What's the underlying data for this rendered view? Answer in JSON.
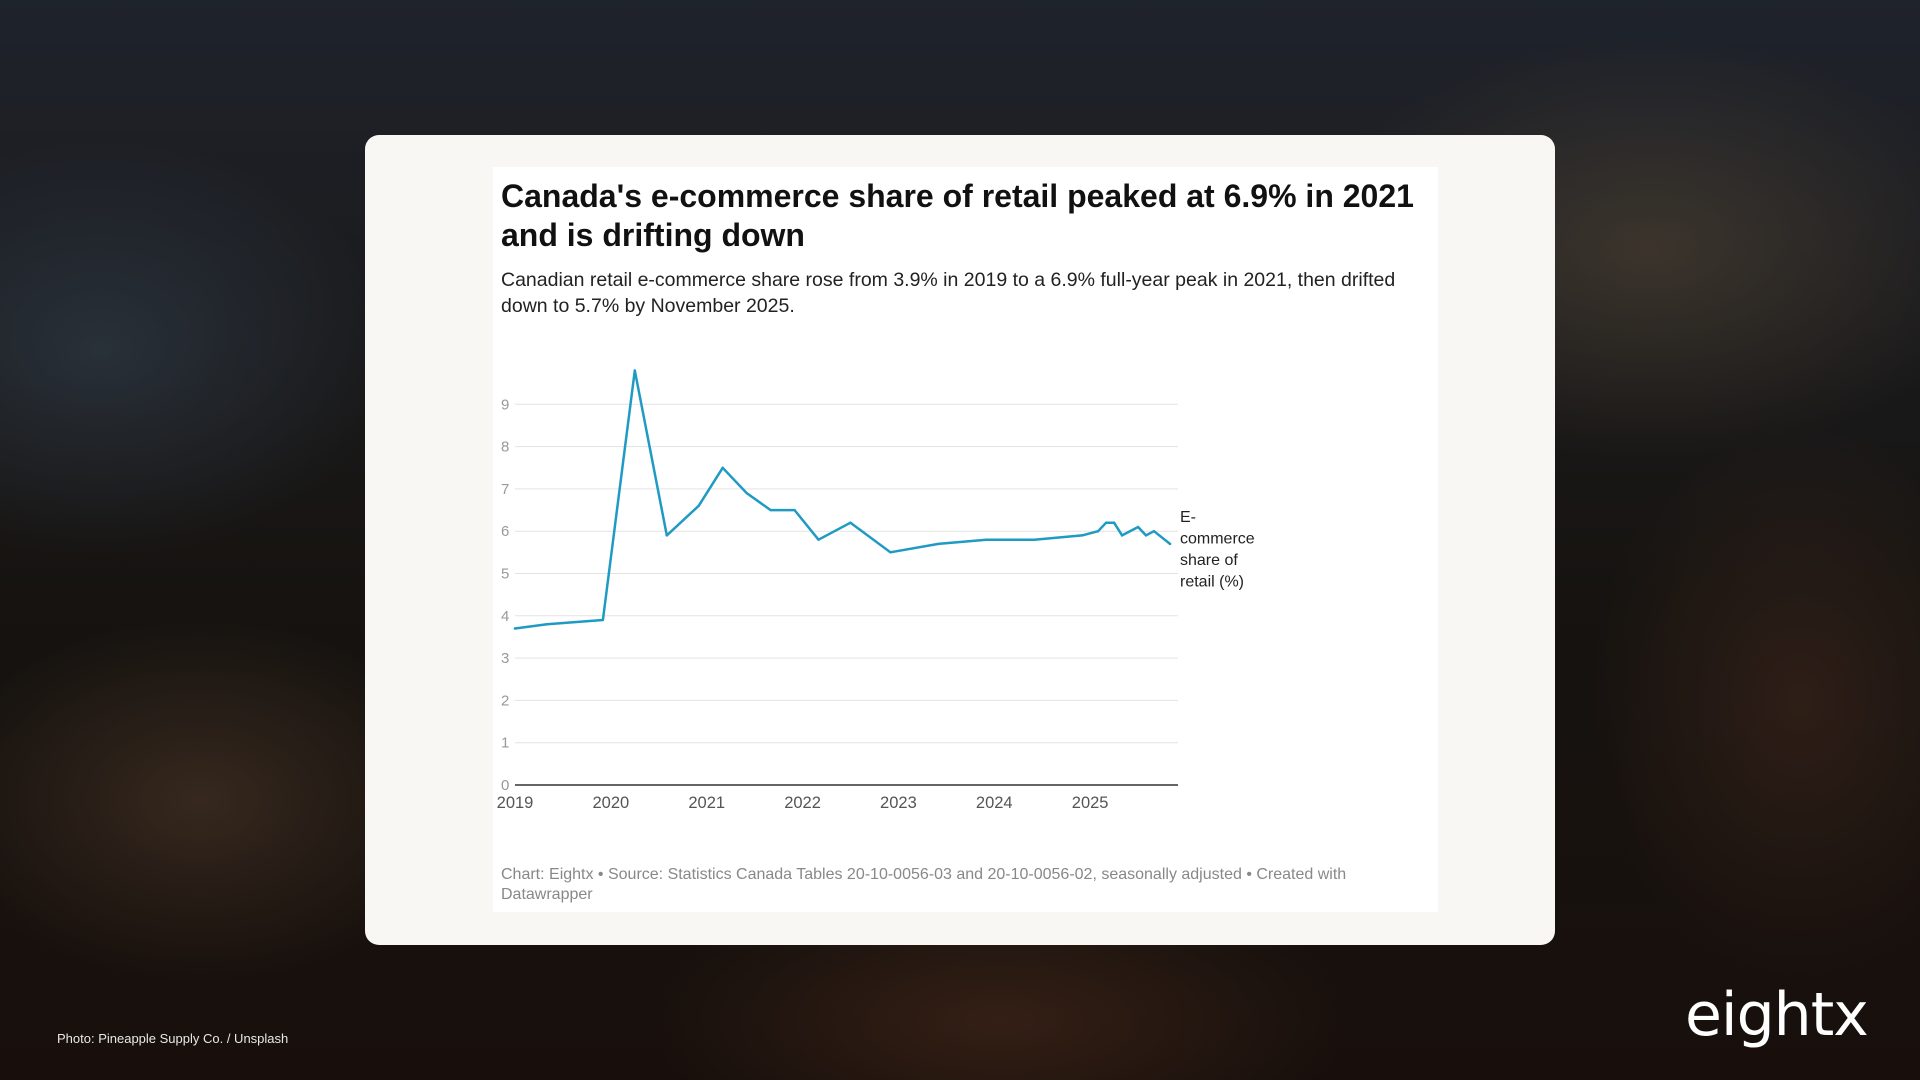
{
  "background": {
    "photo_credit": "Photo: Pineapple Supply Co. / Unsplash",
    "logo_text": "eightx"
  },
  "chart_data": {
    "type": "line",
    "title": "Canada's e-commerce share of retail peaked at 6.9% in 2021 and is drifting down",
    "subtitle": "Canadian retail e-commerce share rose from 3.9% in 2019 to a 6.9% full-year peak in 2021, then drifted down to 5.7% by November 2025.",
    "footer": "Chart: Eightx • Source: Statistics Canada Tables 20-10-0056-03 and 20-10-0056-02, seasonally adjusted • Created with Datawrapper",
    "series": [
      {
        "name": "E-commerce share of retail (%)",
        "color": "#1f9bc3",
        "points": [
          {
            "x": "2019-01",
            "y": 3.7
          },
          {
            "x": "2019-05",
            "y": 3.8
          },
          {
            "x": "2019-12",
            "y": 3.9
          },
          {
            "x": "2020-04",
            "y": 9.8
          },
          {
            "x": "2020-08",
            "y": 5.9
          },
          {
            "x": "2020-12",
            "y": 6.6
          },
          {
            "x": "2021-03",
            "y": 7.5
          },
          {
            "x": "2021-06",
            "y": 6.9
          },
          {
            "x": "2021-09",
            "y": 6.5
          },
          {
            "x": "2021-12",
            "y": 6.5
          },
          {
            "x": "2022-03",
            "y": 5.8
          },
          {
            "x": "2022-07",
            "y": 6.2
          },
          {
            "x": "2022-12",
            "y": 5.5
          },
          {
            "x": "2023-06",
            "y": 5.7
          },
          {
            "x": "2023-12",
            "y": 5.8
          },
          {
            "x": "2024-06",
            "y": 5.8
          },
          {
            "x": "2024-12",
            "y": 5.9
          },
          {
            "x": "2025-02",
            "y": 6.0
          },
          {
            "x": "2025-03",
            "y": 6.2
          },
          {
            "x": "2025-04",
            "y": 6.2
          },
          {
            "x": "2025-05",
            "y": 5.9
          },
          {
            "x": "2025-07",
            "y": 6.1
          },
          {
            "x": "2025-08",
            "y": 5.9
          },
          {
            "x": "2025-09",
            "y": 6.0
          },
          {
            "x": "2025-11",
            "y": 5.7
          }
        ]
      }
    ],
    "x_ticks": [
      "2019",
      "2020",
      "2021",
      "2022",
      "2023",
      "2024",
      "2025"
    ],
    "y_ticks": [
      0,
      1,
      2,
      3,
      4,
      5,
      6,
      7,
      8,
      9
    ],
    "xlim": [
      "2019-01",
      "2025-12"
    ],
    "ylim": [
      0,
      10
    ],
    "grid": true,
    "legend": "direct label at line end",
    "series_label": "E-commerce share of retail (%)"
  }
}
